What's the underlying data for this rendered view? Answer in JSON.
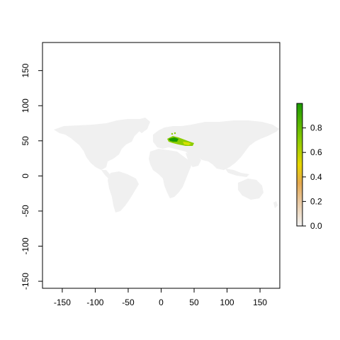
{
  "map": {
    "type": "raster-map",
    "xlim": [
      -180,
      180
    ],
    "ylim": [
      -160,
      190
    ],
    "x_ticks": [
      -150,
      -100,
      -50,
      0,
      50,
      100,
      150
    ],
    "y_ticks": [
      -150,
      -100,
      -50,
      0,
      50,
      100,
      150
    ],
    "x_tick_labels": [
      "-150",
      "-100",
      "-50",
      "0",
      "50",
      "100",
      "150"
    ],
    "y_tick_labels": [
      "-150",
      "-100",
      "-50",
      "0",
      "50",
      "100",
      "150"
    ],
    "land_color": "#f0f0f0",
    "highlight_region": "central and eastern europe",
    "legend": {
      "range": [
        0,
        1
      ],
      "tick_values": [
        0.0,
        0.2,
        0.4,
        0.6,
        0.8
      ],
      "tick_labels": [
        "0.0",
        "0.2",
        "0.4",
        "0.6",
        "0.8"
      ],
      "colors": [
        "#f2f2f2",
        "#e8c7a0",
        "#e5a94f",
        "#e8d600",
        "#8ccc00",
        "#1a9a00"
      ]
    }
  }
}
